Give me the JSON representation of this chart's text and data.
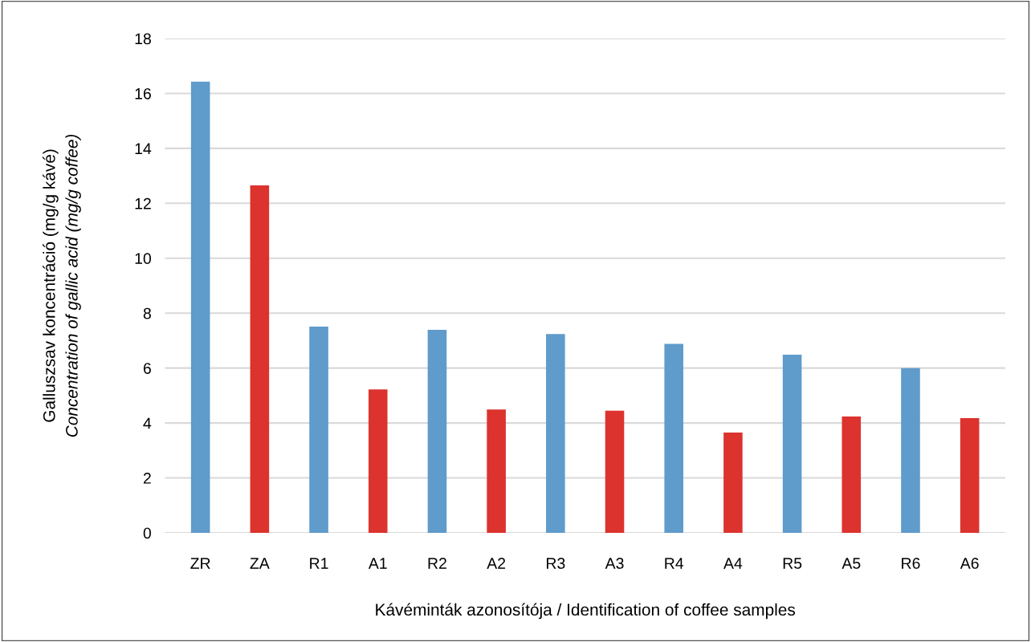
{
  "chart_data": {
    "type": "bar",
    "xlabel": "Kávéminták azonosítója / Identification of coffee samples",
    "ylabel": "Galluszsav koncentráció (mg/g kávé)\nConcentration of gallic acid (mg/g coffee)",
    "categories": [
      "ZR",
      "ZA",
      "R1",
      "A1",
      "R2",
      "A2",
      "R3",
      "A3",
      "R4",
      "A4",
      "R5",
      "A5",
      "R6",
      "A6"
    ],
    "values": [
      16.43,
      12.65,
      7.51,
      5.22,
      7.39,
      4.49,
      7.24,
      4.45,
      6.88,
      3.65,
      6.49,
      4.24,
      6.0,
      4.18
    ],
    "colors": [
      "#5f9bcb",
      "#dc332e",
      "#5f9bcb",
      "#dc332e",
      "#5f9bcb",
      "#dc332e",
      "#5f9bcb",
      "#dc332e",
      "#5f9bcb",
      "#dc332e",
      "#5f9bcb",
      "#dc332e",
      "#5f9bcb",
      "#dc332e"
    ],
    "ylim": [
      0,
      18
    ],
    "yticks": [
      0,
      2,
      4,
      6,
      8,
      10,
      12,
      14,
      16,
      18
    ],
    "grid": "y"
  }
}
